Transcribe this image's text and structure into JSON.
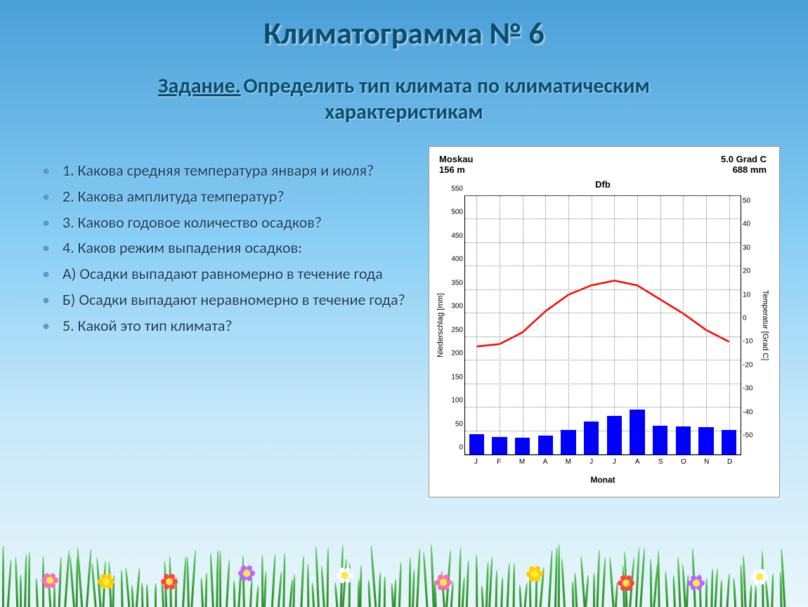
{
  "title": "Климатограмма № 6",
  "subtitle": {
    "task_label": "Задание.",
    "text_line1": " Определить тип климата по климатическим",
    "text_line2": "характеристикам"
  },
  "questions": [
    "1. Какова средняя температура января и июля?",
    "2. Какова амплитуда температур?",
    "3. Каково годовое количество осадков?",
    "4. Каков режим выпадения осадков:",
    "А) Осадки выпадают равномерно в течение года",
    "Б) Осадки выпадают неравномерно в течение года?",
    "5. Какой это тип климата?"
  ],
  "chart": {
    "location": "Moskau",
    "altitude": "156 m",
    "mean_temp": "5.0 Grad C",
    "annual_precip": "688 mm",
    "koppen_code": "Dfb",
    "y_left_label": "Niederschlag [mm]",
    "y_right_label": "Temperatur [Grad C]",
    "x_label": "Monat",
    "months": [
      "J",
      "F",
      "M",
      "A",
      "M",
      "J",
      "J",
      "A",
      "S",
      "O",
      "N",
      "D"
    ],
    "precip_max": 550,
    "precip_ticks": [
      0,
      50,
      100,
      150,
      200,
      250,
      300,
      350,
      400,
      450,
      500,
      550
    ],
    "temp_min": -55,
    "temp_max": 55,
    "temp_ticks": [
      -50,
      -40,
      -30,
      -20,
      -10,
      0,
      10,
      20,
      30,
      40,
      50
    ],
    "precip_values": [
      44,
      38,
      36,
      40,
      52,
      70,
      82,
      95,
      62,
      60,
      58,
      52
    ],
    "temp_values": [
      -9,
      -8,
      -3,
      6,
      13,
      17,
      19,
      17,
      11,
      5,
      -2,
      -7
    ],
    "bar_color": "#0000ff",
    "line_color": "#ff0000",
    "line_width": 2.5,
    "grid_color": "#888888",
    "background": "#ffffff"
  },
  "styling": {
    "title_color": "#0a4d6d",
    "title_fontsize": 44,
    "subtitle_fontsize": 30,
    "question_fontsize": 22,
    "question_color": "#1a3d5c",
    "bullet_color": "#5a9bc4"
  }
}
